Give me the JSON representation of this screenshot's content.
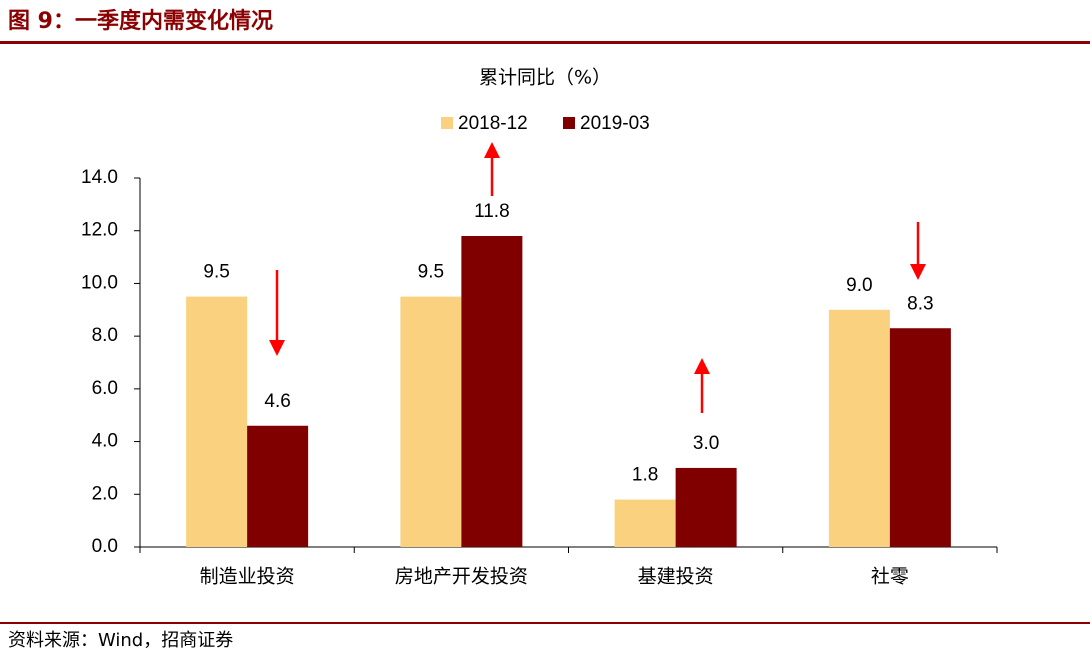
{
  "header": {
    "title": "图 9：一季度内需变化情况"
  },
  "chart_data": {
    "type": "bar",
    "title": "累计同比（%）",
    "categories": [
      "制造业投资",
      "房地产开发投资",
      "基建投资",
      "社零"
    ],
    "series": [
      {
        "name": "2018-12",
        "color": "#fad17f",
        "values": [
          9.5,
          9.5,
          1.8,
          9.0
        ],
        "value_labels": [
          "9.5",
          "9.5",
          "1.8",
          "9.0"
        ]
      },
      {
        "name": "2019-03",
        "color": "#800000",
        "values": [
          4.6,
          11.8,
          3.0,
          8.3
        ],
        "value_labels": [
          "4.6",
          "11.8",
          "3.0",
          "8.3"
        ]
      }
    ],
    "ylim": [
      0,
      14
    ],
    "yticks": [
      {
        "value": 0,
        "label": "0.0"
      },
      {
        "value": 2,
        "label": "2.0"
      },
      {
        "value": 4,
        "label": "4.0"
      },
      {
        "value": 6,
        "label": "6.0"
      },
      {
        "value": 8,
        "label": "8.0"
      },
      {
        "value": 10,
        "label": "10.0"
      },
      {
        "value": 12,
        "label": "12.0"
      },
      {
        "value": 14,
        "label": "14.0"
      }
    ]
  },
  "footer": {
    "source": "资料来源：Wind，招商证券"
  }
}
